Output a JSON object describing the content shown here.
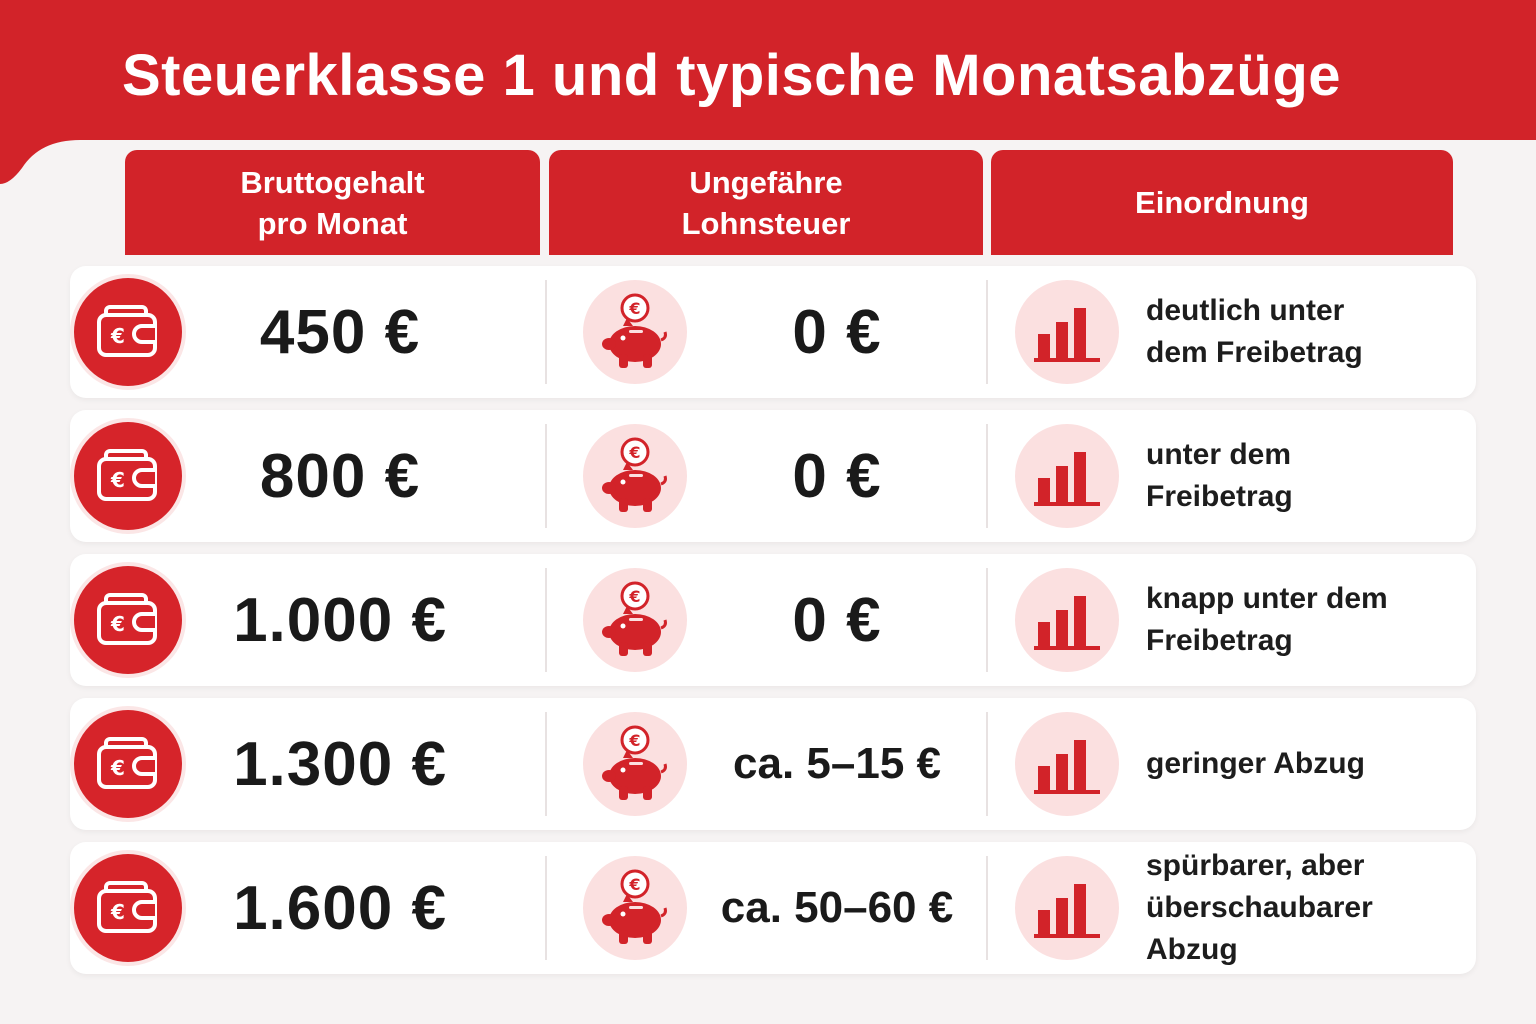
{
  "title": "Steuerklasse 1 und typische Monatsabzüge",
  "colors": {
    "accent": "#d22329",
    "accent_light": "#fbe0e0",
    "background": "#f6f3f3"
  },
  "table": {
    "headers": [
      {
        "line1": "Bruttogehalt",
        "line2": "pro Monat"
      },
      {
        "line1": "Ungefähre",
        "line2": "Lohnsteuer"
      },
      {
        "line1": "Einordnung",
        "line2": ""
      }
    ],
    "rows": [
      {
        "gross": "450 €",
        "tax": "0 €",
        "class_line1": "deutlich unter",
        "class_line2": "dem Freibetrag"
      },
      {
        "gross": "800 €",
        "tax": "0 €",
        "class_line1": "unter dem",
        "class_line2": "Freibetrag"
      },
      {
        "gross": "1.000 €",
        "tax": "0 €",
        "class_line1": "knapp unter dem",
        "class_line2": "Freibetrag"
      },
      {
        "gross": "1.300 €",
        "tax": "ca. 5–15 €",
        "class_line1": "geringer Abzug",
        "class_line2": ""
      },
      {
        "gross": "1.600 €",
        "tax": "ca. 50–60 €",
        "class_line1": "spürbarer, aber",
        "class_line2": "überschaubarer Abzug"
      }
    ]
  },
  "icons": {
    "gross": "wallet-icon",
    "tax": "piggy-bank-icon",
    "class": "bar-chart-icon"
  }
}
